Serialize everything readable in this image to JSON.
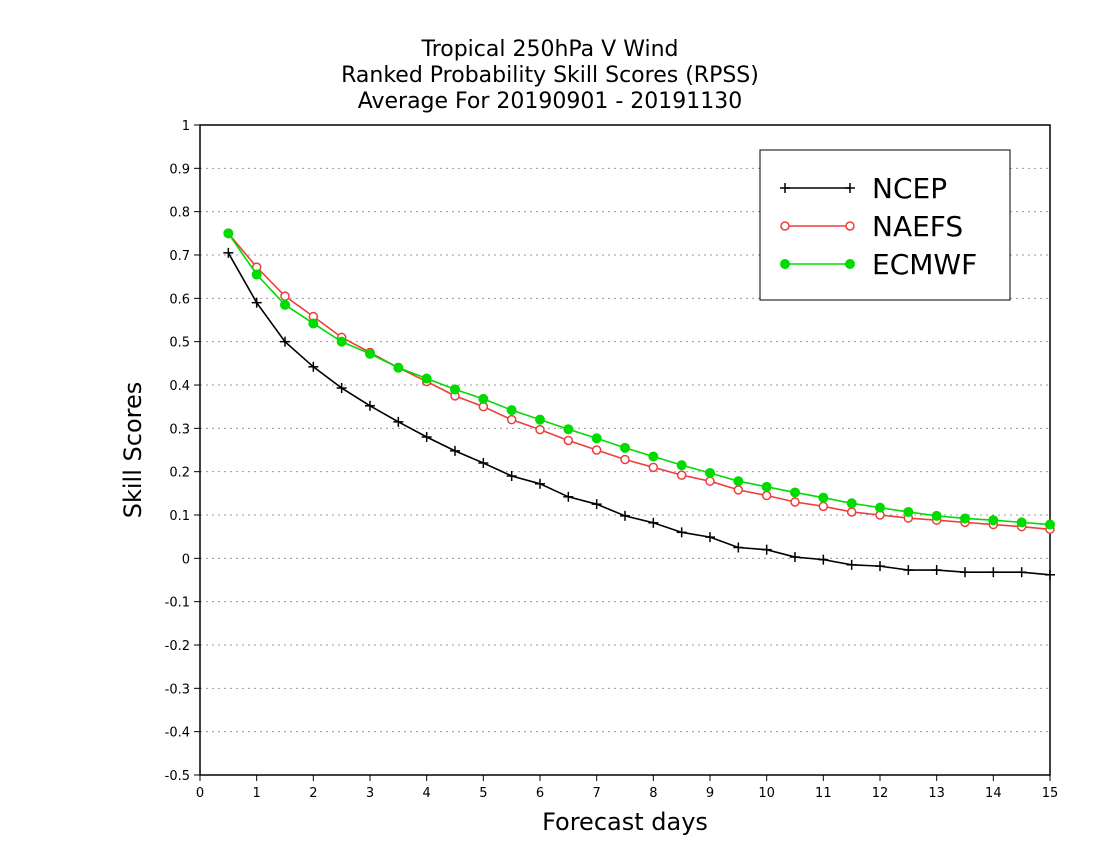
{
  "chart_data": {
    "type": "line",
    "title": "Tropical 250hPa V Wind",
    "subtitle_lines": [
      "Ranked Probability Skill Scores (RPSS)",
      "Average For 20190901 - 20191130"
    ],
    "xlabel": "Forecast days",
    "ylabel": "Skill Scores",
    "xlim": [
      0,
      15
    ],
    "ylim": [
      -0.5,
      1
    ],
    "xticks": [
      "0",
      "1",
      "2",
      "3",
      "4",
      "5",
      "6",
      "7",
      "8",
      "9",
      "10",
      "11",
      "12",
      "13",
      "14",
      "15"
    ],
    "yticks": [
      "1",
      "0.9",
      "0.8",
      "0.7",
      "0.6",
      "0.5",
      "0.4",
      "0.3",
      "0.2",
      "0.1",
      "0",
      "-0.1",
      "-0.2",
      "-0.3",
      "-0.4",
      "-0.5"
    ],
    "grid": "horizontal dotted",
    "legend_position": "top-right",
    "x": [
      0.5,
      1,
      1.5,
      2,
      2.5,
      3,
      3.5,
      4,
      4.5,
      5,
      5.5,
      6,
      6.5,
      7,
      7.5,
      8,
      8.5,
      9,
      9.5,
      10,
      10.5,
      11,
      11.5,
      12,
      12.5,
      13,
      13.5,
      14,
      14.5,
      15
    ],
    "series": [
      {
        "name": "NCEP",
        "color": "#000000",
        "marker": "plus",
        "values": [
          0.705,
          0.59,
          0.5,
          0.442,
          0.393,
          0.352,
          0.315,
          0.28,
          0.248,
          0.22,
          0.19,
          0.172,
          0.142,
          0.125,
          0.098,
          0.082,
          0.06,
          0.049,
          0.025,
          0.02,
          0.003,
          -0.003,
          -0.015,
          -0.018,
          -0.027,
          -0.027,
          -0.032,
          -0.032,
          -0.032,
          -0.038
        ]
      },
      {
        "name": "NAEFS",
        "color": "#f03c3c",
        "marker": "open-circle",
        "values": [
          0.75,
          0.672,
          0.605,
          0.558,
          0.51,
          0.475,
          0.44,
          0.408,
          0.375,
          0.35,
          0.32,
          0.297,
          0.272,
          0.25,
          0.228,
          0.21,
          0.192,
          0.178,
          0.158,
          0.145,
          0.13,
          0.12,
          0.107,
          0.1,
          0.093,
          0.088,
          0.083,
          0.078,
          0.073,
          0.067
        ]
      },
      {
        "name": "ECMWF",
        "color": "#00dc00",
        "marker": "filled-circle",
        "values": [
          0.75,
          0.655,
          0.585,
          0.542,
          0.5,
          0.472,
          0.44,
          0.415,
          0.39,
          0.368,
          0.342,
          0.32,
          0.298,
          0.277,
          0.255,
          0.235,
          0.215,
          0.197,
          0.178,
          0.165,
          0.152,
          0.14,
          0.127,
          0.117,
          0.107,
          0.098,
          0.092,
          0.088,
          0.083,
          0.078
        ]
      }
    ]
  }
}
